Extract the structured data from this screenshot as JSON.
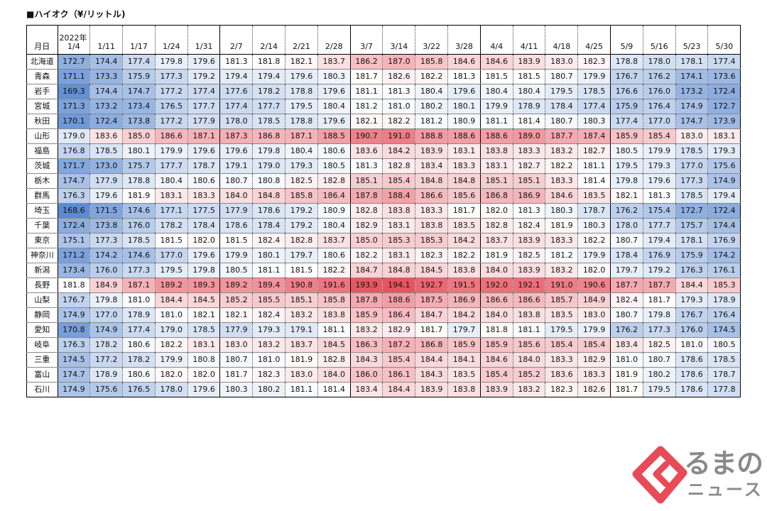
{
  "title": "■ハイオク（¥/リットル)",
  "chart_data": {
    "type": "heatmap",
    "title": "■ハイオク（¥/リットル)",
    "year_label": "2022年",
    "corner_label": "月日",
    "color_scale": {
      "low": "#5b8ad2",
      "mid": "#ffffff",
      "high": "#e8535f",
      "min": 168.6,
      "mid_value": 181.5,
      "max": 194.1
    },
    "columns": [
      "1/4",
      "1/11",
      "1/17",
      "1/24",
      "1/31",
      "2/7",
      "2/14",
      "2/21",
      "2/28",
      "3/7",
      "3/14",
      "3/22",
      "3/28",
      "4/4",
      "4/11",
      "4/18",
      "4/25",
      "5/9",
      "5/16",
      "5/23",
      "5/30"
    ],
    "rows": [
      {
        "name": "北海道",
        "values": [
          172.7,
          174.4,
          177.4,
          179.8,
          179.6,
          181.3,
          181.8,
          182.1,
          183.7,
          186.2,
          187.0,
          185.8,
          184.6,
          184.6,
          183.9,
          183.0,
          182.3,
          178.8,
          178.0,
          178.1,
          177.4
        ]
      },
      {
        "name": "青森",
        "values": [
          171.1,
          173.3,
          175.9,
          177.3,
          179.2,
          179.4,
          179.4,
          179.6,
          180.3,
          181.7,
          182.6,
          182.2,
          181.3,
          181.5,
          181.5,
          180.7,
          179.9,
          176.7,
          176.2,
          174.1,
          173.6
        ]
      },
      {
        "name": "岩手",
        "values": [
          169.3,
          174.4,
          174.7,
          177.2,
          177.4,
          177.6,
          178.2,
          178.8,
          179.6,
          181.1,
          181.3,
          180.4,
          179.6,
          180.4,
          180.4,
          179.5,
          178.5,
          176.6,
          176.0,
          173.2,
          172.4
        ]
      },
      {
        "name": "宮城",
        "values": [
          171.3,
          173.2,
          173.4,
          176.5,
          177.7,
          177.4,
          177.7,
          179.5,
          180.4,
          181.2,
          181.0,
          180.2,
          180.1,
          179.9,
          178.9,
          178.4,
          177.4,
          175.9,
          176.4,
          174.9,
          172.7
        ]
      },
      {
        "name": "秋田",
        "values": [
          170.1,
          172.4,
          173.8,
          177.2,
          177.9,
          178.0,
          178.5,
          178.8,
          179.6,
          182.1,
          182.2,
          181.2,
          180.9,
          181.1,
          181.4,
          180.7,
          180.3,
          177.4,
          177.0,
          174.7,
          173.9
        ]
      },
      {
        "name": "山形",
        "values": [
          179.0,
          183.6,
          185.0,
          186.6,
          187.1,
          187.3,
          186.8,
          187.1,
          188.5,
          190.7,
          191.0,
          188.8,
          188.6,
          188.6,
          189.0,
          187.7,
          187.4,
          185.9,
          185.4,
          183.0,
          183.1
        ]
      },
      {
        "name": "福島",
        "values": [
          176.8,
          178.5,
          180.1,
          179.9,
          179.6,
          179.6,
          179.8,
          180.4,
          180.6,
          183.6,
          184.2,
          183.9,
          183.1,
          183.8,
          183.3,
          183.2,
          182.7,
          180.5,
          179.9,
          178.5,
          179.3
        ]
      },
      {
        "name": "茨城",
        "values": [
          171.7,
          173.0,
          175.7,
          177.7,
          178.7,
          179.1,
          179.0,
          179.3,
          180.5,
          181.3,
          182.8,
          183.4,
          183.3,
          183.1,
          182.7,
          182.2,
          181.1,
          179.5,
          179.3,
          177.0,
          175.6
        ]
      },
      {
        "name": "栃木",
        "values": [
          174.7,
          177.9,
          178.8,
          180.4,
          180.6,
          180.7,
          180.8,
          182.5,
          182.8,
          185.1,
          185.4,
          184.8,
          184.8,
          185.1,
          185.1,
          183.3,
          181.4,
          179.8,
          179.6,
          177.3,
          174.9
        ]
      },
      {
        "name": "群馬",
        "values": [
          176.3,
          179.6,
          181.9,
          183.1,
          183.3,
          184.0,
          184.8,
          185.8,
          186.4,
          187.8,
          188.4,
          186.6,
          185.6,
          186.8,
          186.9,
          184.6,
          183.5,
          182.1,
          181.3,
          178.5,
          179.4
        ]
      },
      {
        "name": "埼玉",
        "values": [
          168.6,
          171.5,
          174.6,
          177.1,
          177.5,
          177.9,
          178.6,
          179.2,
          180.9,
          182.8,
          183.8,
          183.3,
          181.7,
          182.0,
          181.3,
          180.3,
          178.7,
          176.2,
          175.4,
          172.7,
          172.4
        ]
      },
      {
        "name": "千葉",
        "values": [
          172.4,
          173.8,
          176.0,
          178.2,
          178.4,
          178.6,
          178.4,
          179.2,
          180.4,
          182.9,
          183.1,
          183.8,
          183.5,
          182.8,
          182.4,
          181.9,
          180.3,
          178.0,
          177.7,
          175.7,
          174.4
        ]
      },
      {
        "name": "東京",
        "values": [
          175.1,
          177.3,
          178.5,
          181.5,
          182.0,
          181.5,
          182.4,
          182.8,
          183.7,
          185.0,
          185.3,
          185.3,
          184.2,
          183.7,
          183.9,
          183.3,
          182.2,
          180.7,
          179.4,
          178.1,
          176.9
        ]
      },
      {
        "name": "神奈川",
        "values": [
          171.2,
          174.2,
          174.6,
          177.0,
          179.6,
          179.9,
          180.1,
          179.7,
          180.6,
          182.2,
          183.1,
          182.3,
          182.2,
          181.9,
          182.5,
          181.2,
          179.9,
          178.4,
          176.9,
          175.9,
          174.2
        ]
      },
      {
        "name": "新潟",
        "values": [
          173.4,
          176.0,
          177.3,
          179.5,
          179.8,
          180.5,
          181.1,
          181.5,
          182.2,
          184.7,
          184.8,
          184.5,
          183.8,
          184.0,
          183.9,
          183.2,
          182.0,
          179.7,
          179.2,
          176.3,
          176.1
        ]
      },
      {
        "name": "長野",
        "values": [
          181.8,
          184.9,
          187.1,
          189.2,
          189.3,
          189.2,
          189.4,
          190.8,
          191.6,
          193.9,
          194.1,
          192.7,
          191.5,
          192.0,
          192.1,
          191.0,
          190.6,
          187.7,
          187.7,
          184.4,
          185.3
        ]
      },
      {
        "name": "山梨",
        "values": [
          176.7,
          179.8,
          181.0,
          184.4,
          184.5,
          185.2,
          185.5,
          185.1,
          185.8,
          187.8,
          188.6,
          187.5,
          186.9,
          186.6,
          186.6,
          185.7,
          184.9,
          182.4,
          181.7,
          179.3,
          178.9
        ]
      },
      {
        "name": "静岡",
        "values": [
          174.9,
          177.0,
          178.9,
          181.0,
          182.1,
          182.1,
          182.4,
          183.2,
          183.8,
          185.9,
          186.4,
          184.7,
          184.2,
          184.0,
          183.8,
          183.5,
          183.0,
          180.7,
          179.8,
          176.7,
          176.4
        ]
      },
      {
        "name": "愛知",
        "values": [
          170.8,
          174.9,
          177.4,
          179.0,
          178.5,
          177.9,
          179.3,
          179.1,
          181.1,
          183.2,
          182.9,
          181.7,
          179.7,
          181.8,
          181.1,
          179.5,
          179.9,
          176.2,
          177.3,
          176.0,
          174.5
        ]
      },
      {
        "name": "岐阜",
        "values": [
          176.3,
          178.2,
          180.6,
          182.2,
          183.1,
          183.0,
          183.2,
          183.7,
          184.5,
          186.3,
          187.2,
          186.8,
          185.9,
          185.9,
          185.6,
          185.4,
          185.4,
          183.4,
          182.5,
          181.0,
          180.5
        ]
      },
      {
        "name": "三重",
        "values": [
          174.5,
          177.2,
          178.2,
          179.9,
          180.8,
          180.7,
          181.0,
          181.9,
          182.8,
          184.3,
          185.4,
          184.4,
          184.1,
          184.6,
          184.0,
          183.3,
          182.9,
          181.0,
          180.7,
          178.6,
          178.5
        ]
      },
      {
        "name": "富山",
        "values": [
          174.7,
          178.9,
          180.6,
          182.0,
          182.0,
          181.7,
          182.3,
          183.0,
          184.0,
          186.0,
          186.1,
          184.3,
          183.5,
          185.4,
          185.2,
          183.6,
          183.3,
          181.9,
          180.2,
          178.6,
          178.7
        ]
      },
      {
        "name": "石川",
        "values": [
          174.9,
          175.6,
          176.5,
          178.0,
          179.6,
          180.3,
          180.2,
          181.1,
          181.4,
          183.4,
          184.4,
          183.9,
          183.8,
          183.9,
          183.2,
          182.3,
          182.6,
          181.7,
          179.5,
          178.6,
          177.8
        ]
      }
    ]
  },
  "logo": {
    "text_top": "るまの",
    "text_bottom": "ニュース",
    "mark_color": "#e84a57",
    "text_color": "#8a8a8a",
    "icon": "kuruma-logo-mark"
  }
}
